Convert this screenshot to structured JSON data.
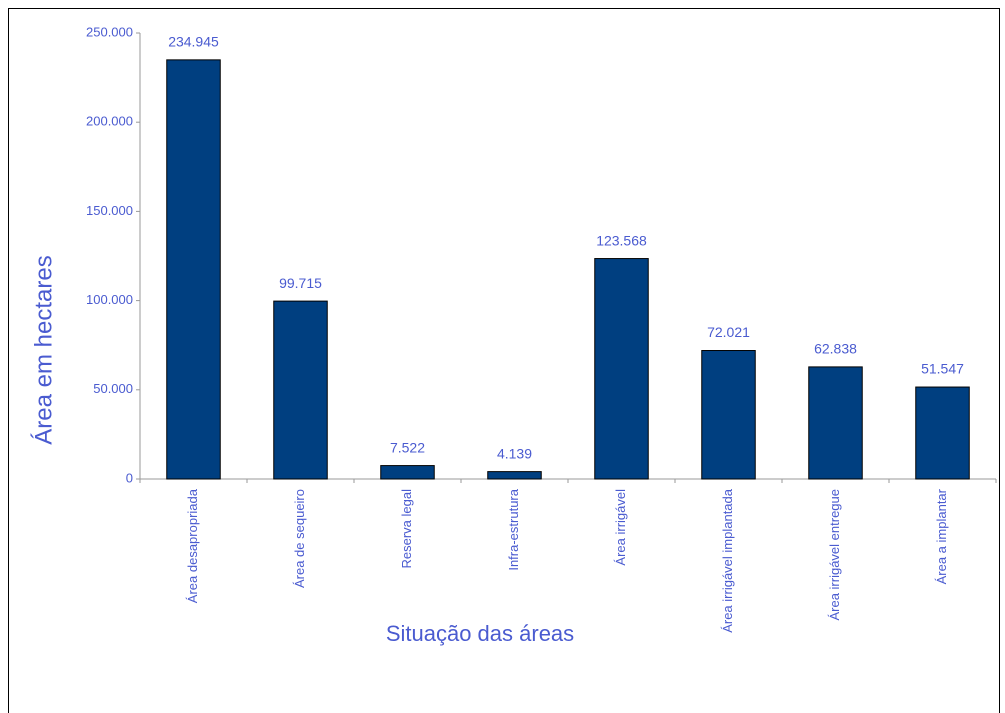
{
  "chart_data": {
    "type": "bar",
    "x_label": "Situação das áreas",
    "y_label": "Área em hectares",
    "categories": [
      "Área desapropriada",
      "Área de sequeiro",
      "Reserva legal",
      "Infra-estrutura",
      "Área  irrigável",
      "Área irrigável implantada",
      "Área irrigável entregue",
      "Área a implantar"
    ],
    "values": [
      234945,
      99715,
      7522,
      4139,
      123568,
      72021,
      62838,
      51547
    ],
    "value_labels": [
      "234.945",
      "99.715",
      "7.522",
      "4.139",
      "123.568",
      "72.021",
      "62.838",
      "51.547"
    ],
    "color": "#003f80",
    "ylim": [
      0,
      250000
    ],
    "yticks": [
      0,
      {
        "value": 50000,
        "label": "50.000"
      },
      {
        "value": 100000,
        "label": "100.000"
      },
      {
        "value": 150000,
        "label": "150.000"
      },
      {
        "value": 200000,
        "label": "200.000"
      },
      {
        "value": 250000,
        "label": "250.000"
      }
    ],
    "grid": false
  }
}
